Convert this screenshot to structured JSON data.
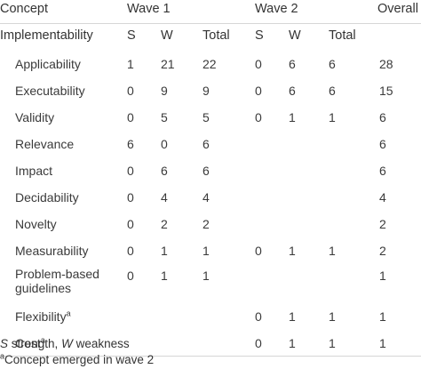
{
  "header": {
    "concept": "Concept",
    "wave1": "Wave 1",
    "wave2": "Wave 2",
    "overall": "Overall"
  },
  "subheader": {
    "group": "Implementability",
    "w1_s": "S",
    "w1_w": "W",
    "w1_total": "Total",
    "w2_s": "S",
    "w2_w": "W",
    "w2_total": "Total"
  },
  "rows": [
    {
      "label": "Applicability",
      "w1_s": "1",
      "w1_w": "21",
      "w1_total": "22",
      "w2_s": "0",
      "w2_w": "6",
      "w2_total": "6",
      "overall": "28"
    },
    {
      "label": "Executability",
      "w1_s": "0",
      "w1_w": "9",
      "w1_total": "9",
      "w2_s": "0",
      "w2_w": "6",
      "w2_total": "6",
      "overall": "15"
    },
    {
      "label": "Validity",
      "w1_s": "0",
      "w1_w": "5",
      "w1_total": "5",
      "w2_s": "0",
      "w2_w": "1",
      "w2_total": "1",
      "overall": "6"
    },
    {
      "label": "Relevance",
      "w1_s": "6",
      "w1_w": "0",
      "w1_total": "6",
      "w2_s": "",
      "w2_w": "",
      "w2_total": "",
      "overall": "6"
    },
    {
      "label": "Impact",
      "w1_s": "0",
      "w1_w": "6",
      "w1_total": "6",
      "w2_s": "",
      "w2_w": "",
      "w2_total": "",
      "overall": "6"
    },
    {
      "label": "Decidability",
      "w1_s": "0",
      "w1_w": "4",
      "w1_total": "4",
      "w2_s": "",
      "w2_w": "",
      "w2_total": "",
      "overall": "4"
    },
    {
      "label": "Novelty",
      "w1_s": "0",
      "w1_w": "2",
      "w1_total": "2",
      "w2_s": "",
      "w2_w": "",
      "w2_total": "",
      "overall": "2"
    },
    {
      "label": "Measurability",
      "w1_s": "0",
      "w1_w": "1",
      "w1_total": "1",
      "w2_s": "0",
      "w2_w": "1",
      "w2_total": "1",
      "overall": "2"
    },
    {
      "label": "Problem-based guidelines",
      "w1_s": "0",
      "w1_w": "1",
      "w1_total": "1",
      "w2_s": "",
      "w2_w": "",
      "w2_total": "",
      "overall": "1"
    },
    {
      "label": "Flexibility",
      "sup": "a",
      "w1_s": "",
      "w1_w": "",
      "w1_total": "",
      "w2_s": "0",
      "w2_w": "1",
      "w2_total": "1",
      "overall": "1"
    },
    {
      "label": "Cost",
      "sup": "a",
      "w1_s": "",
      "w1_w": "",
      "w1_total": "",
      "w2_s": "0",
      "w2_w": "1",
      "w2_total": "1",
      "overall": "1"
    }
  ],
  "footnotes": {
    "s_abbr": "S",
    "s_text": " strength, ",
    "w_abbr": "W",
    "w_text": " weakness",
    "a_sup": "a",
    "a_text": "Concept emerged in wave 2"
  }
}
